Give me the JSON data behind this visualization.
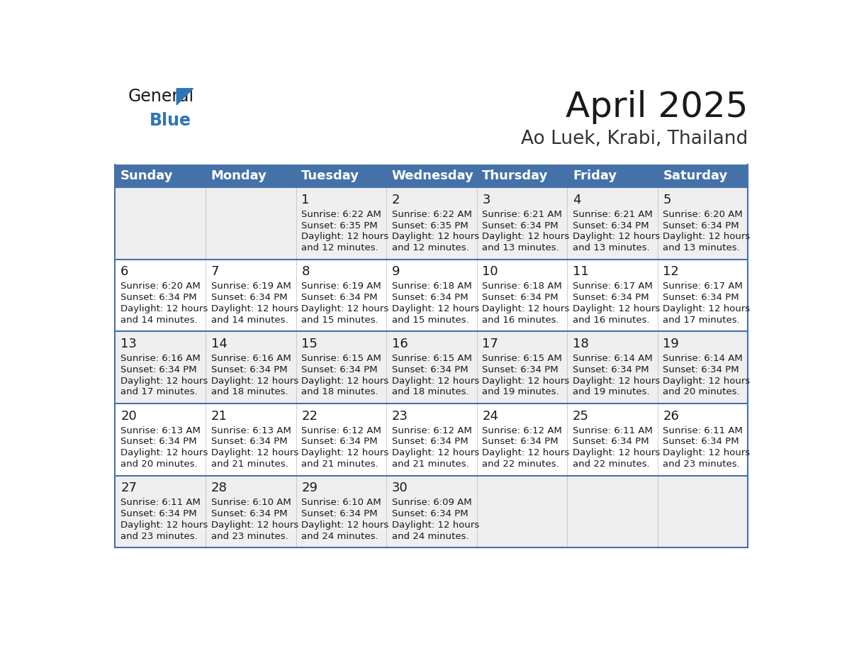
{
  "title": "April 2025",
  "subtitle": "Ao Luek, Krabi, Thailand",
  "days_of_week": [
    "Sunday",
    "Monday",
    "Tuesday",
    "Wednesday",
    "Thursday",
    "Friday",
    "Saturday"
  ],
  "header_bg": "#4472A8",
  "header_text": "#FFFFFF",
  "row_bg_even": "#EFEFEF",
  "row_bg_odd": "#FFFFFF",
  "separator_color": "#4472A8",
  "title_color": "#1a1a1a",
  "subtitle_color": "#333333",
  "cell_text_color": "#1a1a1a",
  "day_num_color": "#1a1a1a",
  "logo_general_color": "#1a1a1a",
  "logo_blue_color": "#2E75B6",
  "logo_triangle_color": "#2E75B6",
  "calendar_data": [
    [
      {
        "day": "",
        "sunrise": "",
        "sunset": "",
        "daylight_line1": "",
        "daylight_line2": ""
      },
      {
        "day": "",
        "sunrise": "",
        "sunset": "",
        "daylight_line1": "",
        "daylight_line2": ""
      },
      {
        "day": "1",
        "sunrise": "6:22 AM",
        "sunset": "6:35 PM",
        "daylight_line1": "Daylight: 12 hours",
        "daylight_line2": "and 12 minutes."
      },
      {
        "day": "2",
        "sunrise": "6:22 AM",
        "sunset": "6:35 PM",
        "daylight_line1": "Daylight: 12 hours",
        "daylight_line2": "and 12 minutes."
      },
      {
        "day": "3",
        "sunrise": "6:21 AM",
        "sunset": "6:34 PM",
        "daylight_line1": "Daylight: 12 hours",
        "daylight_line2": "and 13 minutes."
      },
      {
        "day": "4",
        "sunrise": "6:21 AM",
        "sunset": "6:34 PM",
        "daylight_line1": "Daylight: 12 hours",
        "daylight_line2": "and 13 minutes."
      },
      {
        "day": "5",
        "sunrise": "6:20 AM",
        "sunset": "6:34 PM",
        "daylight_line1": "Daylight: 12 hours",
        "daylight_line2": "and 13 minutes."
      }
    ],
    [
      {
        "day": "6",
        "sunrise": "6:20 AM",
        "sunset": "6:34 PM",
        "daylight_line1": "Daylight: 12 hours",
        "daylight_line2": "and 14 minutes."
      },
      {
        "day": "7",
        "sunrise": "6:19 AM",
        "sunset": "6:34 PM",
        "daylight_line1": "Daylight: 12 hours",
        "daylight_line2": "and 14 minutes."
      },
      {
        "day": "8",
        "sunrise": "6:19 AM",
        "sunset": "6:34 PM",
        "daylight_line1": "Daylight: 12 hours",
        "daylight_line2": "and 15 minutes."
      },
      {
        "day": "9",
        "sunrise": "6:18 AM",
        "sunset": "6:34 PM",
        "daylight_line1": "Daylight: 12 hours",
        "daylight_line2": "and 15 minutes."
      },
      {
        "day": "10",
        "sunrise": "6:18 AM",
        "sunset": "6:34 PM",
        "daylight_line1": "Daylight: 12 hours",
        "daylight_line2": "and 16 minutes."
      },
      {
        "day": "11",
        "sunrise": "6:17 AM",
        "sunset": "6:34 PM",
        "daylight_line1": "Daylight: 12 hours",
        "daylight_line2": "and 16 minutes."
      },
      {
        "day": "12",
        "sunrise": "6:17 AM",
        "sunset": "6:34 PM",
        "daylight_line1": "Daylight: 12 hours",
        "daylight_line2": "and 17 minutes."
      }
    ],
    [
      {
        "day": "13",
        "sunrise": "6:16 AM",
        "sunset": "6:34 PM",
        "daylight_line1": "Daylight: 12 hours",
        "daylight_line2": "and 17 minutes."
      },
      {
        "day": "14",
        "sunrise": "6:16 AM",
        "sunset": "6:34 PM",
        "daylight_line1": "Daylight: 12 hours",
        "daylight_line2": "and 18 minutes."
      },
      {
        "day": "15",
        "sunrise": "6:15 AM",
        "sunset": "6:34 PM",
        "daylight_line1": "Daylight: 12 hours",
        "daylight_line2": "and 18 minutes."
      },
      {
        "day": "16",
        "sunrise": "6:15 AM",
        "sunset": "6:34 PM",
        "daylight_line1": "Daylight: 12 hours",
        "daylight_line2": "and 18 minutes."
      },
      {
        "day": "17",
        "sunrise": "6:15 AM",
        "sunset": "6:34 PM",
        "daylight_line1": "Daylight: 12 hours",
        "daylight_line2": "and 19 minutes."
      },
      {
        "day": "18",
        "sunrise": "6:14 AM",
        "sunset": "6:34 PM",
        "daylight_line1": "Daylight: 12 hours",
        "daylight_line2": "and 19 minutes."
      },
      {
        "day": "19",
        "sunrise": "6:14 AM",
        "sunset": "6:34 PM",
        "daylight_line1": "Daylight: 12 hours",
        "daylight_line2": "and 20 minutes."
      }
    ],
    [
      {
        "day": "20",
        "sunrise": "6:13 AM",
        "sunset": "6:34 PM",
        "daylight_line1": "Daylight: 12 hours",
        "daylight_line2": "and 20 minutes."
      },
      {
        "day": "21",
        "sunrise": "6:13 AM",
        "sunset": "6:34 PM",
        "daylight_line1": "Daylight: 12 hours",
        "daylight_line2": "and 21 minutes."
      },
      {
        "day": "22",
        "sunrise": "6:12 AM",
        "sunset": "6:34 PM",
        "daylight_line1": "Daylight: 12 hours",
        "daylight_line2": "and 21 minutes."
      },
      {
        "day": "23",
        "sunrise": "6:12 AM",
        "sunset": "6:34 PM",
        "daylight_line1": "Daylight: 12 hours",
        "daylight_line2": "and 21 minutes."
      },
      {
        "day": "24",
        "sunrise": "6:12 AM",
        "sunset": "6:34 PM",
        "daylight_line1": "Daylight: 12 hours",
        "daylight_line2": "and 22 minutes."
      },
      {
        "day": "25",
        "sunrise": "6:11 AM",
        "sunset": "6:34 PM",
        "daylight_line1": "Daylight: 12 hours",
        "daylight_line2": "and 22 minutes."
      },
      {
        "day": "26",
        "sunrise": "6:11 AM",
        "sunset": "6:34 PM",
        "daylight_line1": "Daylight: 12 hours",
        "daylight_line2": "and 23 minutes."
      }
    ],
    [
      {
        "day": "27",
        "sunrise": "6:11 AM",
        "sunset": "6:34 PM",
        "daylight_line1": "Daylight: 12 hours",
        "daylight_line2": "and 23 minutes."
      },
      {
        "day": "28",
        "sunrise": "6:10 AM",
        "sunset": "6:34 PM",
        "daylight_line1": "Daylight: 12 hours",
        "daylight_line2": "and 23 minutes."
      },
      {
        "day": "29",
        "sunrise": "6:10 AM",
        "sunset": "6:34 PM",
        "daylight_line1": "Daylight: 12 hours",
        "daylight_line2": "and 24 minutes."
      },
      {
        "day": "30",
        "sunrise": "6:09 AM",
        "sunset": "6:34 PM",
        "daylight_line1": "Daylight: 12 hours",
        "daylight_line2": "and 24 minutes."
      },
      {
        "day": "",
        "sunrise": "",
        "sunset": "",
        "daylight_line1": "",
        "daylight_line2": ""
      },
      {
        "day": "",
        "sunrise": "",
        "sunset": "",
        "daylight_line1": "",
        "daylight_line2": ""
      },
      {
        "day": "",
        "sunrise": "",
        "sunset": "",
        "daylight_line1": "",
        "daylight_line2": ""
      }
    ]
  ]
}
